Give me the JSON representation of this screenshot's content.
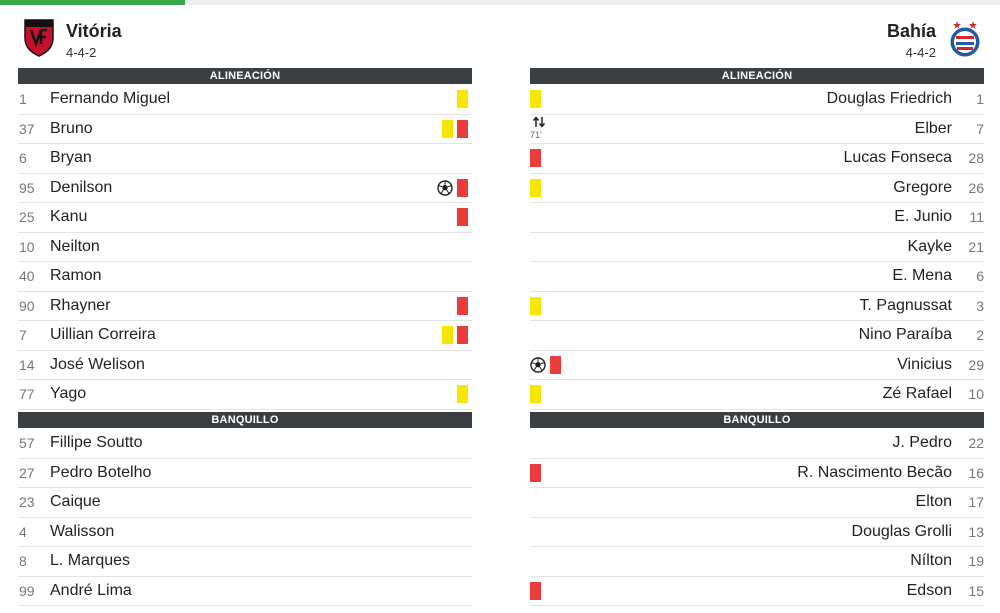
{
  "home": {
    "name": "Vitória",
    "formation": "4-4-2",
    "lineup_label": "ALINEACIÓN",
    "bench_label": "BANQUILLO",
    "lineup": [
      {
        "number": "1",
        "name": "Fernando Miguel",
        "events": [
          "yellow-card"
        ]
      },
      {
        "number": "37",
        "name": "Bruno",
        "events": [
          "yellow-card",
          "red-card"
        ]
      },
      {
        "number": "6",
        "name": "Bryan",
        "events": []
      },
      {
        "number": "95",
        "name": "Denilson",
        "events": [
          "goal",
          "red-card"
        ]
      },
      {
        "number": "25",
        "name": "Kanu",
        "events": [
          "red-card"
        ]
      },
      {
        "number": "10",
        "name": "Neilton",
        "events": []
      },
      {
        "number": "40",
        "name": "Ramon",
        "events": []
      },
      {
        "number": "90",
        "name": "Rhayner",
        "events": [
          "red-card"
        ]
      },
      {
        "number": "7",
        "name": "Uillian Correira",
        "events": [
          "yellow-card",
          "red-card"
        ]
      },
      {
        "number": "14",
        "name": "José Welison",
        "events": []
      },
      {
        "number": "77",
        "name": "Yago",
        "events": [
          "yellow-card"
        ]
      }
    ],
    "bench": [
      {
        "number": "57",
        "name": "Fillipe Soutto",
        "events": []
      },
      {
        "number": "27",
        "name": "Pedro Botelho",
        "events": []
      },
      {
        "number": "23",
        "name": "Caique",
        "events": []
      },
      {
        "number": "4",
        "name": "Walisson",
        "events": []
      },
      {
        "number": "8",
        "name": "L. Marques",
        "events": []
      },
      {
        "number": "99",
        "name": "André Lima",
        "events": []
      }
    ]
  },
  "away": {
    "name": "Bahía",
    "formation": "4-4-2",
    "lineup_label": "ALINEACIÓN",
    "bench_label": "BANQUILLO",
    "lineup": [
      {
        "number": "1",
        "name": "Douglas Friedrich",
        "events": [
          "yellow-card"
        ]
      },
      {
        "number": "7",
        "name": "Elber",
        "events": [
          "substitution"
        ],
        "sub_minute": "71'"
      },
      {
        "number": "28",
        "name": "Lucas Fonseca",
        "events": [
          "red-card"
        ]
      },
      {
        "number": "26",
        "name": "Gregore",
        "events": [
          "yellow-card"
        ]
      },
      {
        "number": "11",
        "name": "E. Junio",
        "events": []
      },
      {
        "number": "21",
        "name": "Kayke",
        "events": []
      },
      {
        "number": "6",
        "name": "E. Mena",
        "events": []
      },
      {
        "number": "3",
        "name": "T. Pagnussat",
        "events": [
          "yellow-card"
        ]
      },
      {
        "number": "2",
        "name": "Nino Paraíba",
        "events": []
      },
      {
        "number": "29",
        "name": "Vinicius",
        "events": [
          "goal",
          "red-card"
        ]
      },
      {
        "number": "10",
        "name": "Zé Rafael",
        "events": [
          "yellow-card"
        ]
      }
    ],
    "bench": [
      {
        "number": "22",
        "name": "J. Pedro",
        "events": []
      },
      {
        "number": "16",
        "name": "R. Nascimento Becão",
        "events": [
          "red-card"
        ]
      },
      {
        "number": "17",
        "name": "Elton",
        "events": []
      },
      {
        "number": "13",
        "name": "Douglas Grolli",
        "events": []
      },
      {
        "number": "19",
        "name": "Nílton",
        "events": []
      },
      {
        "number": "15",
        "name": "Edson",
        "events": [
          "red-card"
        ]
      }
    ]
  },
  "colors": {
    "accent": "#38a84a",
    "header_bg": "#3a3f44",
    "yellow_card": "#f7e600",
    "red_card": "#ec3d3d"
  }
}
